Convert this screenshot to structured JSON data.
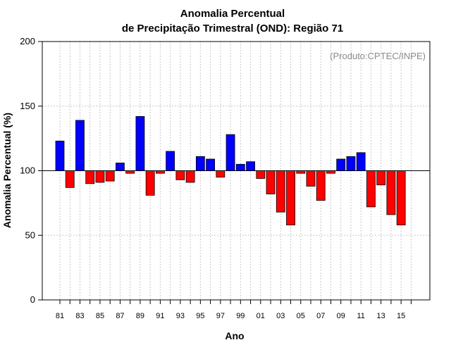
{
  "chart_data": {
    "type": "bar",
    "title_line1": "Anomalia Percentual",
    "title_line2": "de Precipitação Trimestral (OND): Região 71",
    "xlabel": "Ano",
    "ylabel": "Anomalia Percentual (%)",
    "annotation": "(Produto:CPTEC/INPE)",
    "baseline": 100,
    "ylim": [
      0,
      200
    ],
    "yticks": [
      0,
      50,
      100,
      150,
      200
    ],
    "grid": true,
    "categories": [
      "81",
      "82",
      "83",
      "84",
      "85",
      "86",
      "87",
      "88",
      "89",
      "90",
      "91",
      "92",
      "93",
      "94",
      "95",
      "96",
      "97",
      "98",
      "99",
      "00",
      "01",
      "02",
      "03",
      "04",
      "05",
      "06",
      "07",
      "08",
      "09",
      "10",
      "11",
      "12",
      "13",
      "14",
      "15"
    ],
    "xtick_labels": [
      "81",
      "83",
      "85",
      "87",
      "89",
      "91",
      "93",
      "95",
      "97",
      "99",
      "01",
      "03",
      "05",
      "07",
      "09",
      "11",
      "13",
      "15"
    ],
    "values": [
      123,
      87,
      139,
      90,
      91,
      92,
      106,
      98,
      142,
      81,
      98,
      115,
      93,
      91,
      111,
      109,
      95,
      128,
      105,
      107,
      94,
      82,
      68,
      58,
      98,
      88,
      77,
      98,
      109,
      111,
      114,
      72,
      89,
      66,
      58
    ],
    "colors": {
      "above": "#0000ff",
      "below": "#ff0000",
      "grid": "#c8c8c8",
      "axis": "#000000"
    }
  }
}
